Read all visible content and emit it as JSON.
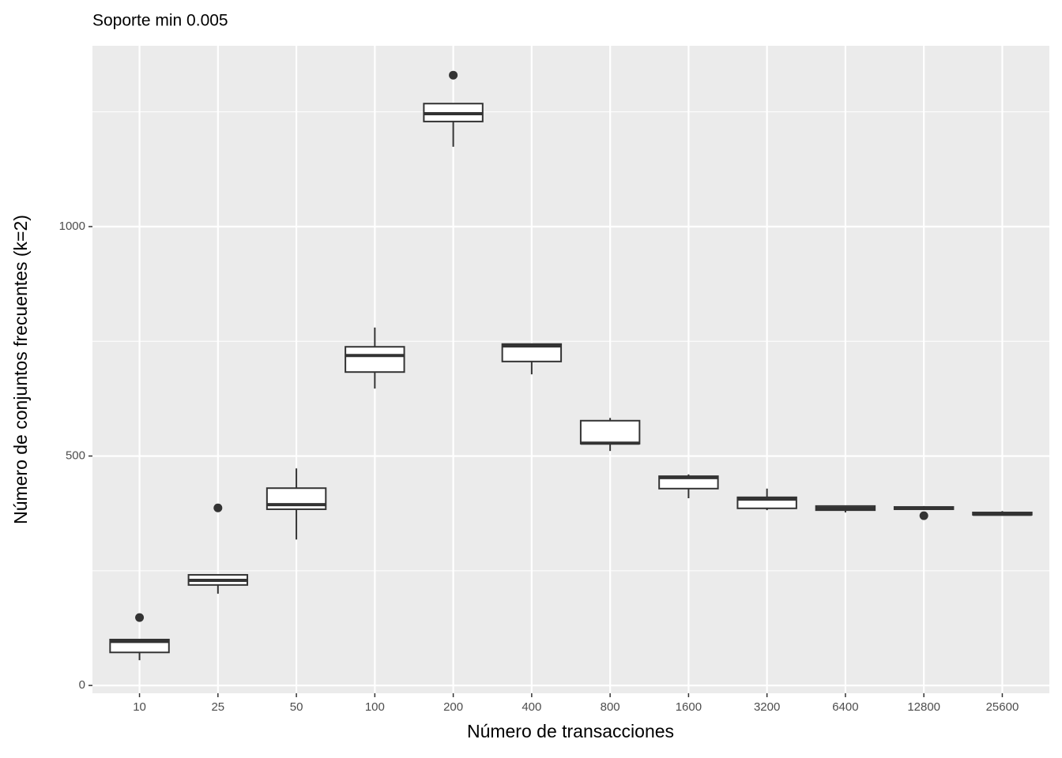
{
  "chart_data": {
    "type": "box",
    "title": "Soporte min 0.005",
    "x_label": "Número de transacciones",
    "y_label": "Número de conjuntos frecuentes (k=2)",
    "categories": [
      "10",
      "25",
      "50",
      "100",
      "200",
      "400",
      "800",
      "1600",
      "3200",
      "6400",
      "12800",
      "25600"
    ],
    "boxes": [
      {
        "whislo": 55,
        "q1": 72,
        "med": 96,
        "q3": 100,
        "whishi": 100,
        "outliers": [
          148
        ]
      },
      {
        "whislo": 200,
        "q1": 219,
        "med": 229,
        "q3": 241,
        "whishi": 241,
        "outliers": [
          387
        ]
      },
      {
        "whislo": 318,
        "q1": 384,
        "med": 394,
        "q3": 430,
        "whishi": 473,
        "outliers": []
      },
      {
        "whislo": 647,
        "q1": 683,
        "med": 719,
        "q3": 738,
        "whishi": 780,
        "outliers": []
      },
      {
        "whislo": 1174,
        "q1": 1229,
        "med": 1246,
        "q3": 1268,
        "whishi": 1268,
        "outliers": [
          1330
        ]
      },
      {
        "whislo": 678,
        "q1": 706,
        "med": 740,
        "q3": 744,
        "whishi": 744,
        "outliers": []
      },
      {
        "whislo": 511,
        "q1": 527,
        "med": 528,
        "q3": 577,
        "whishi": 583,
        "outliers": []
      },
      {
        "whislo": 408,
        "q1": 429,
        "med": 453,
        "q3": 456,
        "whishi": 460,
        "outliers": []
      },
      {
        "whislo": 382,
        "q1": 386,
        "med": 406,
        "q3": 410,
        "whishi": 429,
        "outliers": []
      },
      {
        "whislo": 377,
        "q1": 382,
        "med": 386,
        "q3": 391,
        "whishi": 391,
        "outliers": []
      },
      {
        "whislo": 382,
        "q1": 384,
        "med": 386,
        "q3": 389,
        "whishi": 391,
        "outliers": [
          370
        ]
      },
      {
        "whislo": 370,
        "q1": 372,
        "med": 373,
        "q3": 377,
        "whishi": 380,
        "outliers": []
      }
    ],
    "ylim": [
      -17,
      1394
    ],
    "yticks": [
      0,
      500,
      1000
    ],
    "y_minor_ticks": [
      250,
      750,
      1250
    ],
    "grid": true,
    "panel_color": "#ebebeb",
    "box_fill": "#ffffff",
    "line_color": "#333333"
  }
}
